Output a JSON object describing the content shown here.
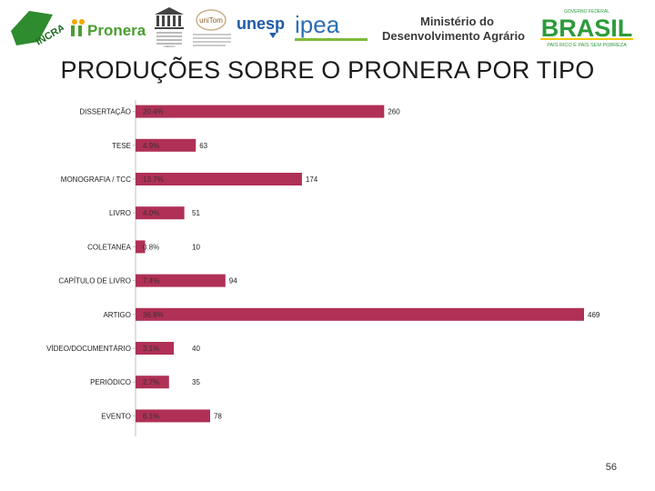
{
  "header": {
    "logos": {
      "incra": "INCRA",
      "pronera": "Pronera",
      "unesco_caption": "UNESCO",
      "unitom": "uniTom",
      "unesp": "unesp",
      "ipea": "ipea",
      "mda_line1": "Ministério do",
      "mda_line2": "Desenvolvimento Agrário",
      "gov_top": "GOVERNO FEDERAL",
      "brasil": "BRASIL",
      "brasil_slogan": "PAÍS RICO É PAÍS SEM POBREZA"
    },
    "colors": {
      "incra_green": "#2e8b2e",
      "pronera_green": "#4a9d2f",
      "unesp_blue": "#1f5aa8",
      "ipea_blue": "#2a6fb5",
      "brasil_green": "#2d9b3a",
      "brasil_yellow": "#f2c500",
      "mda_text": "#3a3a3a"
    }
  },
  "slide": {
    "title": "PRODUÇÕES SOBRE O PRONERA POR TIPO",
    "page_number": "56"
  },
  "chart_data": {
    "type": "bar",
    "orientation": "horizontal",
    "categories": [
      "DISSERTAÇÃO",
      "TESE",
      "MONOGRAFIA / TCC",
      "LIVRO",
      "COLETANEA",
      "CAPÍTULO DE LIVRO",
      "ARTIGO",
      "VÍDEO/DOCUMENTÁRIO",
      "PERIÓDICO",
      "EVENTO"
    ],
    "values": [
      260,
      63,
      174,
      51,
      10,
      94,
      469,
      40,
      35,
      78
    ],
    "percent_labels": [
      "20.4%",
      "4.9%",
      "13.7%",
      "4.0%",
      "0.8%",
      "7.4%",
      "36.8%",
      "3.1%",
      "2.7%",
      "6.1%"
    ],
    "xlim": [
      0,
      469
    ],
    "bar_color": "#b03056",
    "grid": false,
    "legend": "none"
  }
}
